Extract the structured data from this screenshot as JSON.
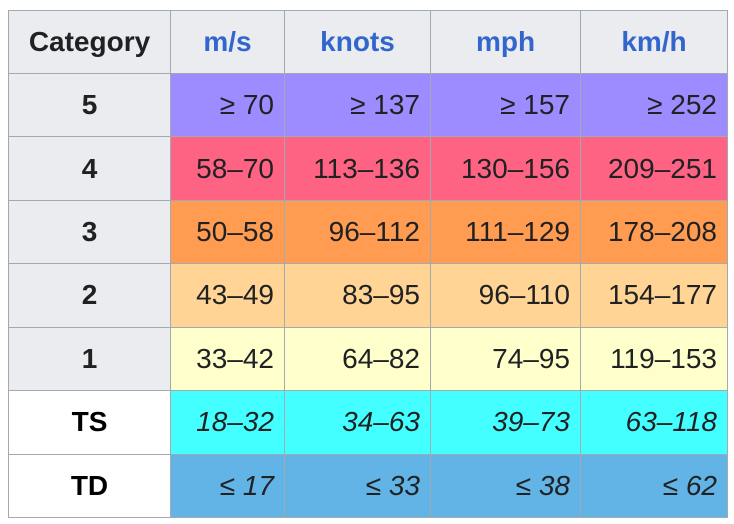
{
  "table": {
    "headers": [
      "Category",
      "m/s",
      "knots",
      "mph",
      "km/h"
    ],
    "rows": [
      {
        "category": "5",
        "color": "#9d8cff",
        "values": [
          "≥ 70",
          "≥ 137",
          "≥ 157",
          "≥ 252"
        ]
      },
      {
        "category": "4",
        "color": "#ff6384",
        "values": [
          "58–70",
          "113–136",
          "130–156",
          "209–251"
        ]
      },
      {
        "category": "3",
        "color": "#ff9c52",
        "values": [
          "50–58",
          "96–112",
          "111–129",
          "178–208"
        ]
      },
      {
        "category": "2",
        "color": "#ffd494",
        "values": [
          "43–49",
          "83–95",
          "96–110",
          "154–177"
        ]
      },
      {
        "category": "1",
        "color": "#ffffcc",
        "values": [
          "33–42",
          "64–82",
          "74–95",
          "119–153"
        ]
      },
      {
        "category": "TS",
        "color": "#44ffff",
        "values": [
          "18–32",
          "34–63",
          "39–73",
          "63–118"
        ]
      },
      {
        "category": "TD",
        "color": "#62b4e6",
        "values": [
          "≤ 17",
          "≤ 33",
          "≤ 38",
          "≤ 62"
        ]
      }
    ]
  }
}
